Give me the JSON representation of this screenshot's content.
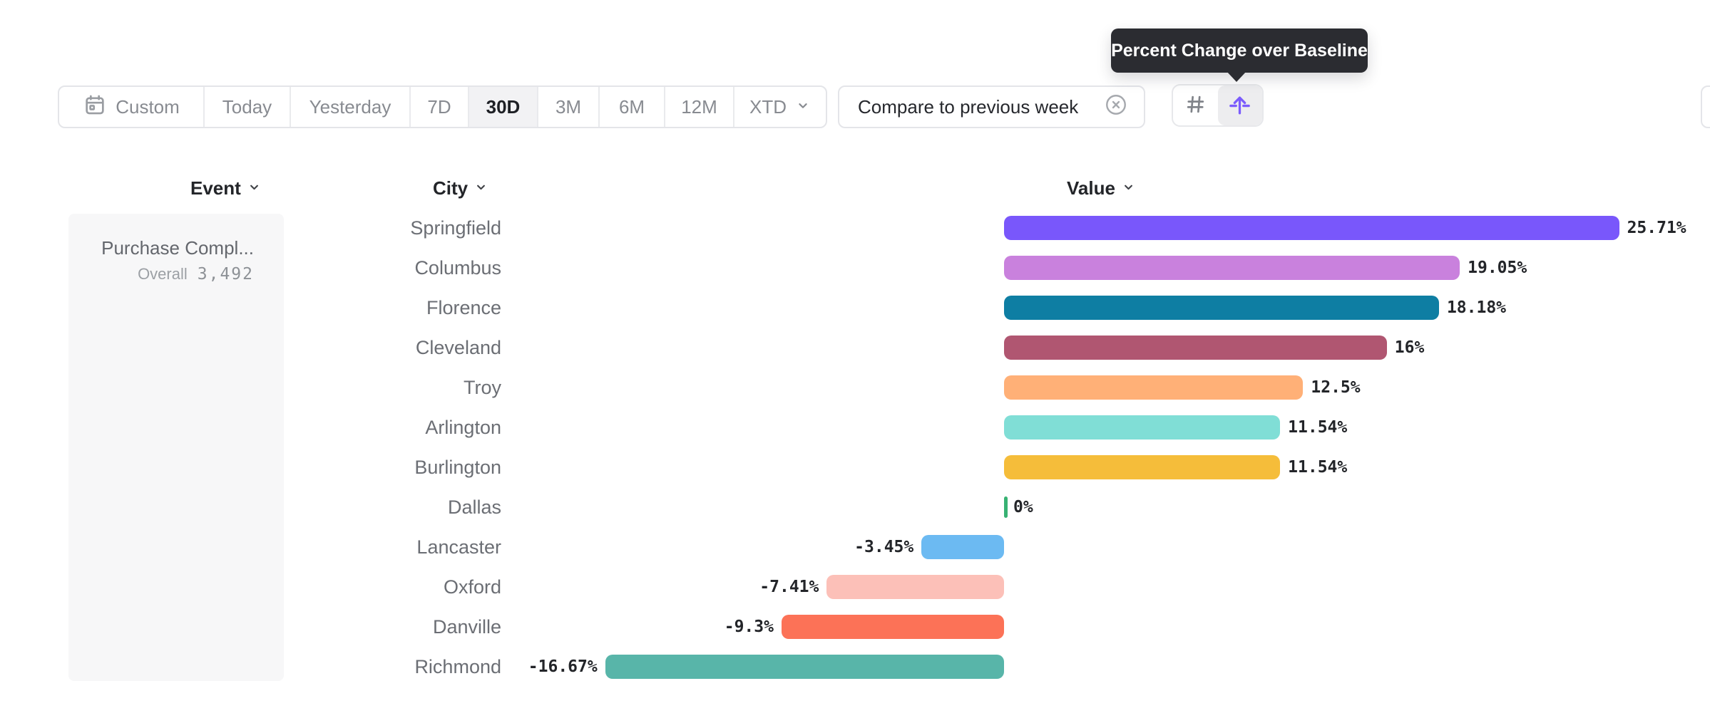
{
  "tooltip": {
    "text": "Percent Change over Baseline"
  },
  "toolbar": {
    "date_ranges": [
      {
        "label": "Custom",
        "selected": false,
        "icon": "calendar-icon"
      },
      {
        "label": "Today",
        "selected": false
      },
      {
        "label": "Yesterday",
        "selected": false
      },
      {
        "label": "7D",
        "selected": false
      },
      {
        "label": "30D",
        "selected": true
      },
      {
        "label": "3M",
        "selected": false
      },
      {
        "label": "6M",
        "selected": false
      },
      {
        "label": "12M",
        "selected": false
      },
      {
        "label": "XTD",
        "selected": false,
        "icon": "chevron-down-icon"
      }
    ],
    "compare": {
      "label": "Compare to previous week",
      "dismiss_icon": "x-circle-icon"
    },
    "view_toggle": [
      {
        "name": "grid-view",
        "icon": "hash-icon",
        "selected": false
      },
      {
        "name": "percent-change-baseline",
        "icon": "arrow-up-from-line-icon",
        "selected": true,
        "accent": "#7b5cfc"
      }
    ]
  },
  "columns": [
    {
      "label": "Event"
    },
    {
      "label": "City"
    },
    {
      "label": "Value"
    }
  ],
  "event_panel": {
    "name": "Purchase Compl...",
    "overall_label": "Overall",
    "overall_value": "3,492"
  },
  "chart_data": {
    "type": "bar",
    "orientation": "horizontal",
    "title": "Percent Change over Baseline",
    "series_name": "Value",
    "categories": [
      "Springfield",
      "Columbus",
      "Florence",
      "Cleveland",
      "Troy",
      "Arlington",
      "Burlington",
      "Dallas",
      "Lancaster",
      "Oxford",
      "Danville",
      "Richmond"
    ],
    "values": [
      25.71,
      19.05,
      18.18,
      16,
      12.5,
      11.54,
      11.54,
      0,
      -3.45,
      -7.41,
      -9.3,
      -16.67
    ],
    "value_labels": [
      "25.71%",
      "19.05%",
      "18.18%",
      "16%",
      "12.5%",
      "11.54%",
      "11.54%",
      "0%",
      "-3.45%",
      "-7.41%",
      "-9.3%",
      "-16.67%"
    ],
    "bar_colors": [
      "#7957fb",
      "#c981dd",
      "#0e7ea3",
      "#b05671",
      "#ffb077",
      "#80ded6",
      "#f5bd3a",
      "#37b273",
      "#6cbaf2",
      "#fcc0b8",
      "#fc7257",
      "#58b5a9"
    ],
    "xlim": [
      -16.67,
      25.71
    ],
    "grid": false,
    "legend": false,
    "value_format": "percent",
    "zero_baseline": true
  }
}
